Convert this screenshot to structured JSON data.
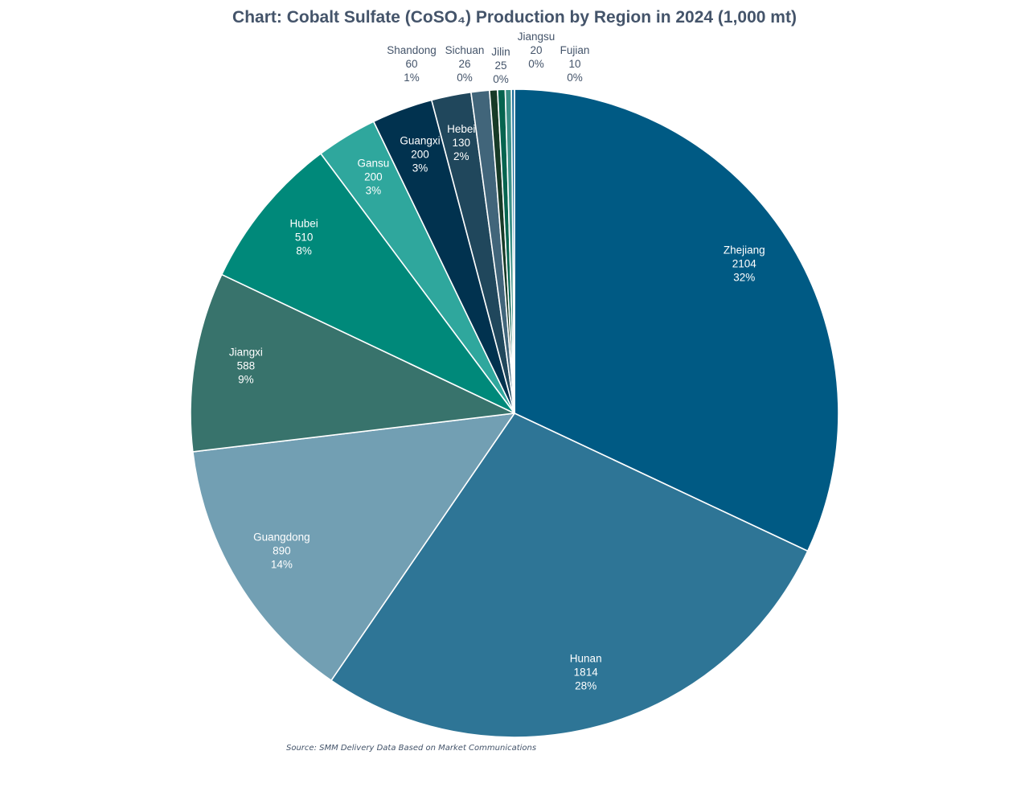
{
  "chart_data": {
    "type": "pie",
    "title": "Chart: Cobalt Sulfate (CoSO₄) Production by Region in 2024 (1,000 mt)",
    "source": "Source: SMM Delivery Data Based on Market Communications",
    "slices": [
      {
        "name": "Zhejiang",
        "value": 2104,
        "pct": "32%",
        "color": "#005a84",
        "label_color": "#ffffff"
      },
      {
        "name": "Hunan",
        "value": 1814,
        "pct": "28%",
        "color": "#2e7596",
        "label_color": "#ffffff"
      },
      {
        "name": "Guangdong",
        "value": 890,
        "pct": "14%",
        "color": "#729fb3",
        "label_color": "#ffffff"
      },
      {
        "name": "Jiangxi",
        "value": 588,
        "pct": "9%",
        "color": "#38736c",
        "label_color": "#ffffff"
      },
      {
        "name": "Hubei",
        "value": 510,
        "pct": "8%",
        "color": "#00897a",
        "label_color": "#ffffff"
      },
      {
        "name": "Gansu",
        "value": 200,
        "pct": "3%",
        "color": "#2fa79d",
        "label_color": "#ffffff"
      },
      {
        "name": "Guangxi",
        "value": 200,
        "pct": "3%",
        "color": "#01324f",
        "label_color": "#ffffff"
      },
      {
        "name": "Hebei",
        "value": 130,
        "pct": "2%",
        "color": "#20475c",
        "label_color": "#ffffff"
      },
      {
        "name": "Shandong",
        "value": 60,
        "pct": "1%",
        "color": "#41657a",
        "label_color": "#44546a"
      },
      {
        "name": "Sichuan",
        "value": 26,
        "pct": "0%",
        "color": "#173a27",
        "label_color": "#44546a"
      },
      {
        "name": "Jilin",
        "value": 25,
        "pct": "0%",
        "color": "#06644f",
        "label_color": "#44546a"
      },
      {
        "name": "Jiangsu",
        "value": 20,
        "pct": "0%",
        "color": "#3a8f86",
        "label_color": "#44546a"
      },
      {
        "name": "Fujian",
        "value": 10,
        "pct": "0%",
        "color": "#1a6f9c",
        "label_color": "#44546a"
      }
    ]
  }
}
